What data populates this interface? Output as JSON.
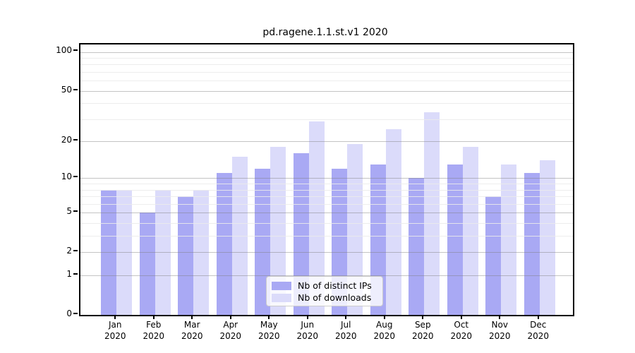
{
  "title": "pd.ragene.1.1.st.v1 2020",
  "legend": {
    "items": [
      {
        "label": "Nb of distinct IPs",
        "color": "#a9a9f4"
      },
      {
        "label": "Nb of downloads",
        "color": "#dbdbfa"
      }
    ]
  },
  "chart_data": {
    "type": "bar",
    "title": "pd.ragene.1.1.st.v1 2020",
    "categories": [
      "Jan 2020",
      "Feb 2020",
      "Mar 2020",
      "Apr 2020",
      "May 2020",
      "Jun 2020",
      "Jul 2020",
      "Aug 2020",
      "Sep 2020",
      "Oct 2020",
      "Nov 2020",
      "Dec 2020"
    ],
    "series": [
      {
        "name": "Nb of distinct IPs",
        "color": "#a9a9f4",
        "values": [
          8,
          5,
          7,
          11,
          12,
          16,
          12,
          13,
          10,
          13,
          7,
          11
        ]
      },
      {
        "name": "Nb of downloads",
        "color": "#dbdbfa",
        "values": [
          8,
          8,
          8,
          15,
          18,
          29,
          19,
          25,
          34,
          18,
          13,
          14
        ]
      }
    ],
    "xlabel": "",
    "ylabel": "",
    "yscale": "log1p",
    "ylim": [
      0,
      114
    ],
    "yticks": [
      0,
      1,
      2,
      5,
      10,
      20,
      50,
      100
    ],
    "yticks_minor": [
      3,
      4,
      6,
      7,
      8,
      9,
      30,
      40,
      60,
      70,
      80,
      90
    ],
    "grid": true,
    "legend_position": "lower center"
  }
}
